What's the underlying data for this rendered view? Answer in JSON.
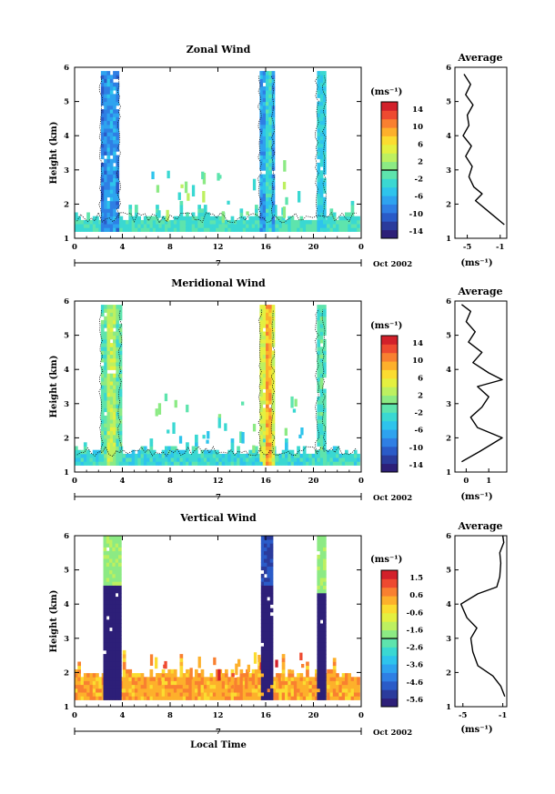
{
  "chart_data": [
    {
      "type": "heatmap",
      "title": "Zonal Wind",
      "ylabel": "Height (km)",
      "xlabel": "",
      "x_ticks": [
        "0",
        "4",
        "8",
        "12",
        "16",
        "20",
        "0"
      ],
      "y_ticks": [
        "1",
        "2",
        "3",
        "4",
        "5",
        "6"
      ],
      "ylim": [
        1,
        6
      ],
      "date_label": "7",
      "month_label": "Oct 2002",
      "colorbar": {
        "unit": "(ms⁻¹)",
        "ticks": [
          "14",
          "10",
          "6",
          "2",
          "-2",
          "-6",
          "-10",
          "-14"
        ],
        "range": [
          -16,
          16
        ]
      },
      "bands": [
        {
          "x0": 2.2,
          "x1": 3.7,
          "ytop": 5.8,
          "base": -9,
          "core": -7
        },
        {
          "x0": 15.5,
          "x1": 16.6,
          "ytop": 5.8,
          "base": -7,
          "core": -3
        },
        {
          "x0": 20.3,
          "x1": 20.9,
          "ytop": 5.8,
          "base": -4,
          "core": -4
        }
      ],
      "low_layer_value": -2,
      "profile": {
        "title": "Average",
        "xlabel": "(ms⁻¹)",
        "x_ticks": [
          "-5",
          "-1"
        ],
        "xlim": [
          -6.5,
          -0.2
        ],
        "y": [
          1.4,
          1.7,
          1.9,
          2.1,
          2.3,
          2.5,
          2.8,
          3.1,
          3.4,
          3.7,
          4.0,
          4.3,
          4.6,
          4.9,
          5.2,
          5.5,
          5.8
        ],
        "x": [
          -0.5,
          -2.0,
          -3.0,
          -4.0,
          -3.2,
          -4.2,
          -4.8,
          -4.4,
          -5.2,
          -4.5,
          -5.5,
          -4.8,
          -5.0,
          -4.3,
          -5.2,
          -4.6,
          -5.4
        ]
      }
    },
    {
      "type": "heatmap",
      "title": "Meridional Wind",
      "ylabel": "Height (km)",
      "xlabel": "",
      "x_ticks": [
        "0",
        "4",
        "8",
        "12",
        "16",
        "20",
        "0"
      ],
      "y_ticks": [
        "1",
        "2",
        "3",
        "4",
        "5",
        "6"
      ],
      "ylim": [
        1,
        6
      ],
      "date_label": "7",
      "month_label": "Oct 2002",
      "colorbar": {
        "unit": "(ms⁻¹)",
        "ticks": [
          "14",
          "10",
          "6",
          "2",
          "-2",
          "-6",
          "-10",
          "-14"
        ],
        "range": [
          -16,
          16
        ]
      },
      "bands": [
        {
          "x0": 2.2,
          "x1": 3.8,
          "ytop": 5.8,
          "base": -1,
          "core": 3
        },
        {
          "x0": 15.5,
          "x1": 16.6,
          "ytop": 5.8,
          "base": 4,
          "core": 9
        },
        {
          "x0": 20.3,
          "x1": 20.9,
          "ytop": 5.8,
          "base": -2,
          "core": -1
        }
      ],
      "low_layer_value": -3,
      "profile": {
        "title": "Average",
        "xlabel": "(ms⁻¹)",
        "x_ticks": [
          "0",
          "1"
        ],
        "xlim": [
          -0.5,
          1.8
        ],
        "y": [
          1.3,
          1.6,
          2.0,
          2.3,
          2.6,
          2.9,
          3.2,
          3.5,
          3.7,
          3.9,
          4.2,
          4.5,
          4.8,
          5.1,
          5.4,
          5.7,
          5.9
        ],
        "x": [
          -0.2,
          0.6,
          1.6,
          0.5,
          0.2,
          0.7,
          1.0,
          0.5,
          1.6,
          1.0,
          0.3,
          0.7,
          0.1,
          0.4,
          0.0,
          0.2,
          -0.2
        ]
      }
    },
    {
      "type": "heatmap",
      "title": "Vertical Wind",
      "ylabel": "Height (km)",
      "xlabel": "Local Time",
      "x_ticks": [
        "0",
        "4",
        "8",
        "12",
        "16",
        "20",
        "0"
      ],
      "y_ticks": [
        "1",
        "2",
        "3",
        "4",
        "5",
        "6"
      ],
      "ylim": [
        1,
        6
      ],
      "date_label": "7",
      "month_label": "Oct 2002",
      "colorbar": {
        "unit": "(ms⁻¹)",
        "ticks": [
          "1.5",
          "0.6",
          "-0.6",
          "-1.6",
          "-2.6",
          "-3.6",
          "-4.6",
          "-5.6"
        ],
        "range": [
          -6,
          2
        ]
      },
      "bands": [
        {
          "x0": 2.4,
          "x1": 3.7,
          "ytop": 6.0,
          "base": -5.8,
          "upper": -1.6,
          "split": 4.5
        },
        {
          "x0": 15.6,
          "x1": 16.5,
          "ytop": 6.0,
          "base": -5.8,
          "upper": -5.0,
          "split": 4.5
        },
        {
          "x0": 20.3,
          "x1": 21.0,
          "ytop": 6.0,
          "base": -5.8,
          "upper": -1.6,
          "split": 4.3
        }
      ],
      "low_layer_value": 0.3,
      "profile": {
        "title": "Average",
        "xlabel": "(ms⁻¹)",
        "x_ticks": [
          "-5",
          "-1"
        ],
        "xlim": [
          -5.8,
          -0.6
        ],
        "y": [
          1.3,
          1.6,
          1.9,
          2.2,
          2.6,
          3.0,
          3.3,
          3.6,
          4.0,
          4.3,
          4.5,
          4.8,
          5.2,
          5.5,
          5.8,
          6.0
        ],
        "x": [
          -0.8,
          -1.2,
          -2.0,
          -3.5,
          -4.0,
          -4.2,
          -3.6,
          -4.6,
          -5.2,
          -3.5,
          -1.6,
          -1.3,
          -1.2,
          -1.3,
          -0.9,
          -1.0
        ]
      }
    }
  ]
}
